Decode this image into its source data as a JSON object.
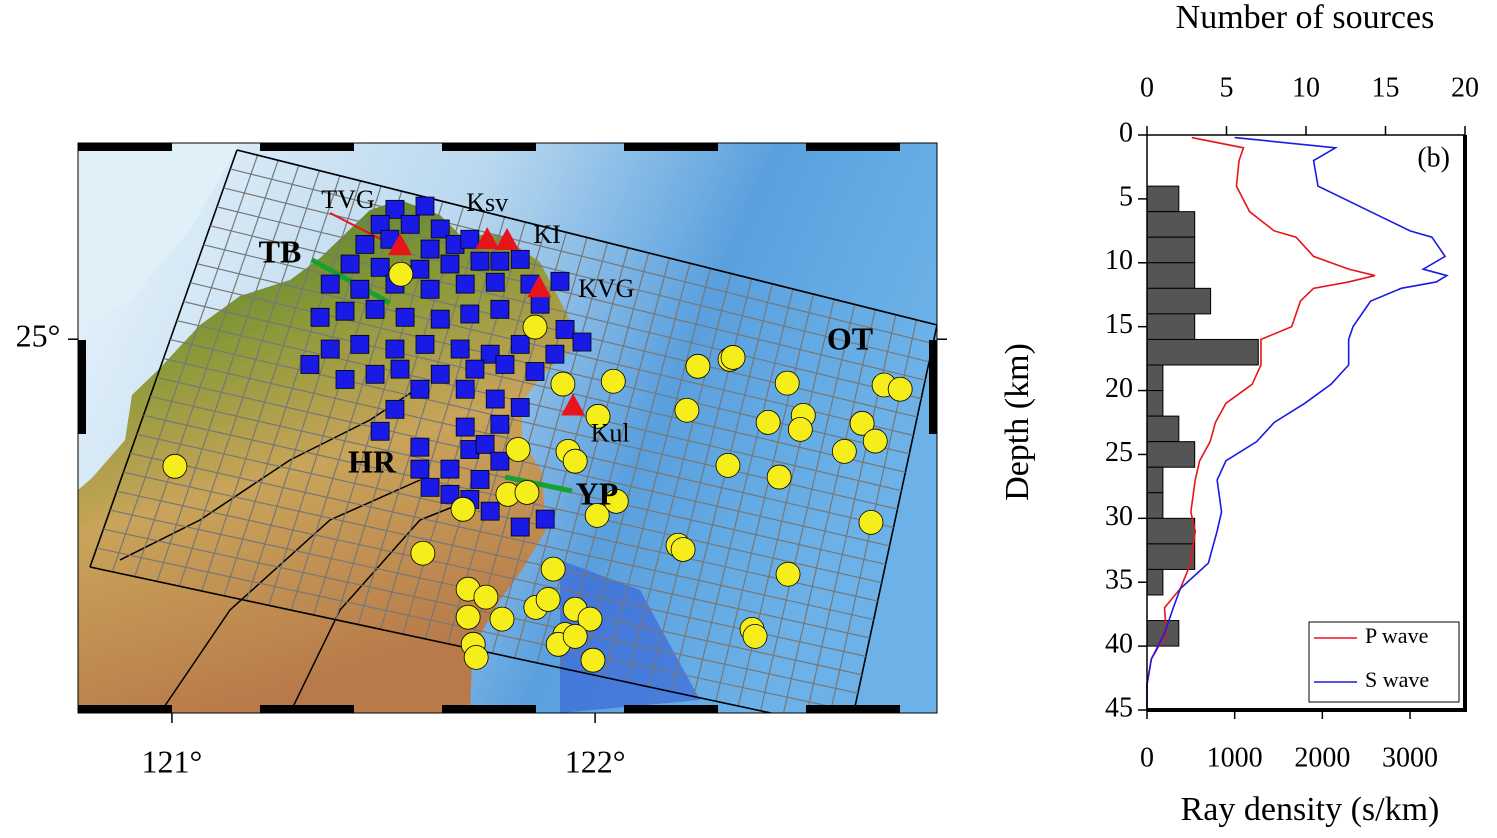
{
  "map": {
    "xlim": [
      120.778,
      122.808
    ],
    "ylim": [
      24.2,
      25.42
    ],
    "xticks": [
      {
        "value": 121,
        "label": "121°"
      },
      {
        "value": 122,
        "label": "122°"
      }
    ],
    "yticks": [
      {
        "value": 25,
        "label": "25°"
      }
    ],
    "stations": {
      "color": "#e8141c",
      "items": [
        {
          "name": "TVG",
          "lon": 121.539,
          "lat": 25.197
        },
        {
          "name": "Ksv",
          "lon": 121.745,
          "lat": 25.21
        },
        {
          "name": "KI",
          "lon": 121.792,
          "lat": 25.208
        },
        {
          "name": "KVG",
          "lon": 121.868,
          "lat": 25.107
        },
        {
          "name": "Kul",
          "lon": 121.948,
          "lat": 24.854
        }
      ]
    },
    "labels": [
      "TB",
      "OT",
      "HR",
      "YP"
    ],
    "squares": {
      "color": "#1a1ae6",
      "lon": [
        121.527,
        121.598,
        121.492,
        121.563,
        121.634,
        121.456,
        121.515,
        121.61,
        121.669,
        121.704,
        121.421,
        121.492,
        121.586,
        121.657,
        121.728,
        121.775,
        121.823,
        121.917,
        121.374,
        121.444,
        121.527,
        121.61,
        121.693,
        121.764,
        121.846,
        121.35,
        121.409,
        121.48,
        121.551,
        121.634,
        121.704,
        121.775,
        121.87,
        121.929,
        121.969,
        121.374,
        121.444,
        121.527,
        121.598,
        121.681,
        121.752,
        121.823,
        121.905,
        121.326,
        121.409,
        121.48,
        121.539,
        121.634,
        121.716,
        121.787,
        121.858,
        121.527,
        121.586,
        121.693,
        121.764,
        121.823,
        121.492,
        121.586,
        121.693,
        121.775,
        121.704,
        121.74,
        121.586,
        121.657,
        121.728,
        121.775,
        121.657,
        121.704,
        121.752,
        121.823,
        121.882,
        121.61
      ],
      "lat": [
        25.278,
        25.285,
        25.246,
        25.246,
        25.236,
        25.203,
        25.214,
        25.193,
        25.203,
        25.214,
        25.161,
        25.154,
        25.15,
        25.161,
        25.167,
        25.167,
        25.171,
        25.124,
        25.118,
        25.107,
        25.118,
        25.107,
        25.118,
        25.122,
        25.118,
        25.047,
        25.06,
        25.064,
        25.047,
        25.043,
        25.054,
        25.064,
        25.075,
        25.021,
        24.994,
        24.979,
        24.989,
        24.979,
        24.989,
        24.979,
        24.968,
        24.989,
        24.968,
        24.946,
        24.914,
        24.925,
        24.936,
        24.925,
        24.936,
        24.946,
        24.931,
        24.85,
        24.893,
        24.893,
        24.872,
        24.854,
        24.803,
        24.769,
        24.812,
        24.818,
        24.764,
        24.775,
        24.722,
        24.722,
        24.7,
        24.739,
        24.668,
        24.657,
        24.632,
        24.598,
        24.615,
        24.683
      ]
    },
    "circles": {
      "color": "#f5ee1a",
      "lon": [
        121.541,
        121.858,
        121.007,
        121.924,
        122.043,
        122.007,
        121.936,
        121.953,
        121.818,
        121.794,
        121.839,
        121.688,
        122.005,
        122.05,
        122.243,
        122.319,
        122.326,
        122.454,
        122.683,
        122.721,
        122.217,
        122.409,
        122.492,
        122.485,
        122.631,
        122.662,
        122.589,
        122.314,
        122.435,
        122.652,
        122.196,
        122.208,
        121.593,
        121.901,
        122.456,
        121.7,
        121.742,
        121.78,
        121.7,
        121.86,
        121.889,
        121.953,
        121.988,
        121.929,
        121.913,
        121.953,
        121.712,
        121.719,
        121.995,
        122.371,
        122.378
      ],
      "lat": [
        25.139,
        25.026,
        24.728,
        24.904,
        24.91,
        24.835,
        24.76,
        24.739,
        24.764,
        24.668,
        24.672,
        24.636,
        24.623,
        24.653,
        24.942,
        24.957,
        24.961,
        24.906,
        24.902,
        24.893,
        24.848,
        24.822,
        24.837,
        24.807,
        24.82,
        24.782,
        24.76,
        24.73,
        24.705,
        24.608,
        24.559,
        24.55,
        24.542,
        24.508,
        24.497,
        24.465,
        24.448,
        24.401,
        24.405,
        24.426,
        24.443,
        24.422,
        24.401,
        24.368,
        24.347,
        24.364,
        24.347,
        24.319,
        24.313,
        24.379,
        24.364
      ]
    }
  },
  "chart_data": {
    "type": "line",
    "panel_label": "(b)",
    "xlabel": "Ray density (s/km)",
    "ylabel": "Depth (km)",
    "x2label": "Number of sources",
    "xlim": [
      0,
      3627
    ],
    "xticks": [
      0,
      1000,
      2000,
      3000
    ],
    "x2lim": [
      0,
      20
    ],
    "x2ticks": [
      0,
      5,
      10,
      15,
      20
    ],
    "ylim": [
      0,
      45
    ],
    "y_inverted": true,
    "yticks": [
      0,
      5,
      10,
      15,
      20,
      25,
      30,
      35,
      40,
      45
    ],
    "y": [
      0.2,
      1,
      2,
      4,
      6,
      7.5,
      8,
      9.5,
      10.5,
      11,
      11.5,
      12,
      13,
      15,
      16,
      18,
      19.5,
      21,
      22.5,
      24,
      25.5,
      27,
      29.5,
      31,
      33.5,
      35.5,
      37,
      39,
      41,
      43,
      45
    ],
    "series": [
      {
        "name": "P wave",
        "color": "#e8141c",
        "values": [
          510,
          1100,
          1050,
          1020,
          1170,
          1450,
          1700,
          1900,
          2300,
          2600,
          2300,
          1900,
          1750,
          1650,
          1300,
          1300,
          1200,
          900,
          780,
          720,
          600,
          550,
          500,
          550,
          500,
          380,
          200,
          220,
          50,
          0,
          0
        ]
      },
      {
        "name": "S wave",
        "color": "#1a1ae6",
        "values": [
          1000,
          2150,
          1900,
          1950,
          2550,
          3000,
          3250,
          3400,
          3150,
          3420,
          3300,
          2900,
          2550,
          2350,
          2300,
          2300,
          2100,
          1800,
          1450,
          1250,
          900,
          800,
          850,
          800,
          700,
          380,
          300,
          200,
          50,
          0,
          0
        ]
      }
    ],
    "histogram": {
      "color": "#555555",
      "bins": [
        4,
        6,
        8,
        10,
        12,
        14,
        16,
        18,
        20,
        22,
        24,
        26,
        28,
        30,
        32,
        34,
        36,
        38,
        40
      ],
      "counts": [
        2,
        3,
        3,
        3,
        4,
        3,
        7,
        1,
        1,
        2,
        3,
        1,
        1,
        3,
        3,
        1,
        0,
        2
      ]
    },
    "legend": "bottom-right"
  }
}
